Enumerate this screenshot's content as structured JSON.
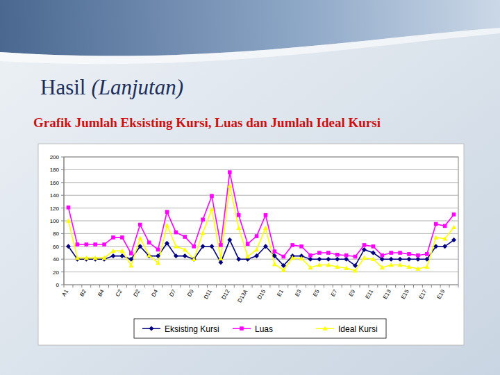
{
  "slide": {
    "heading": "Hasil",
    "heading_italic": "(Lanjutan)"
  },
  "chart_data": {
    "type": "line",
    "title": "Grafik Jumlah Eksisting Kursi, Luas dan Jumlah Ideal Kursi",
    "categories": [
      "A1",
      null,
      "B2",
      null,
      "B4",
      null,
      "C2",
      null,
      "D2",
      null,
      "D4",
      null,
      "D7",
      null,
      "D9",
      null,
      "D11",
      null,
      "D12",
      null,
      "D13A",
      null,
      "D15",
      null,
      "E1",
      null,
      "E3",
      null,
      "E5",
      null,
      "E7",
      null,
      "E9",
      null,
      "E11",
      null,
      "E13",
      null,
      "E15",
      null,
      "E17",
      null,
      "E19",
      null
    ],
    "series": [
      {
        "name": "Eksisting Kursi",
        "color": "#000080",
        "marker": "diamond",
        "values": [
          60,
          40,
          40,
          40,
          40,
          45,
          45,
          40,
          60,
          45,
          45,
          65,
          45,
          45,
          40,
          60,
          60,
          35,
          70,
          40,
          40,
          45,
          60,
          45,
          30,
          45,
          45,
          40,
          40,
          40,
          40,
          40,
          30,
          55,
          50,
          40,
          40,
          40,
          40,
          40,
          40,
          60,
          60,
          70
        ]
      },
      {
        "name": "Luas",
        "color": "#ff00ff",
        "marker": "square",
        "values": [
          121,
          63,
          63,
          63,
          63,
          74,
          74,
          49,
          94,
          66,
          55,
          114,
          82,
          75,
          60,
          102,
          139,
          62,
          176,
          109,
          64,
          76,
          109,
          52,
          44,
          62,
          60,
          46,
          50,
          50,
          47,
          46,
          44,
          62,
          60,
          46,
          50,
          50,
          48,
          46,
          48,
          95,
          92,
          110
        ]
      },
      {
        "name": "Ideal Kursi",
        "color": "#ffff00",
        "marker": "triangle",
        "values": [
          100,
          42,
          42,
          42,
          42,
          53,
          53,
          30,
          73,
          46,
          34,
          93,
          60,
          55,
          40,
          81,
          118,
          41,
          155,
          89,
          44,
          55,
          89,
          32,
          23,
          42,
          41,
          27,
          31,
          31,
          28,
          26,
          22,
          42,
          40,
          27,
          31,
          31,
          28,
          25,
          28,
          74,
          72,
          90
        ]
      }
    ],
    "ylim": [
      0,
      200
    ],
    "yticks": [
      0,
      20,
      40,
      60,
      80,
      100,
      120,
      140,
      160,
      180,
      200
    ],
    "grid": true,
    "legend": "bottom"
  }
}
